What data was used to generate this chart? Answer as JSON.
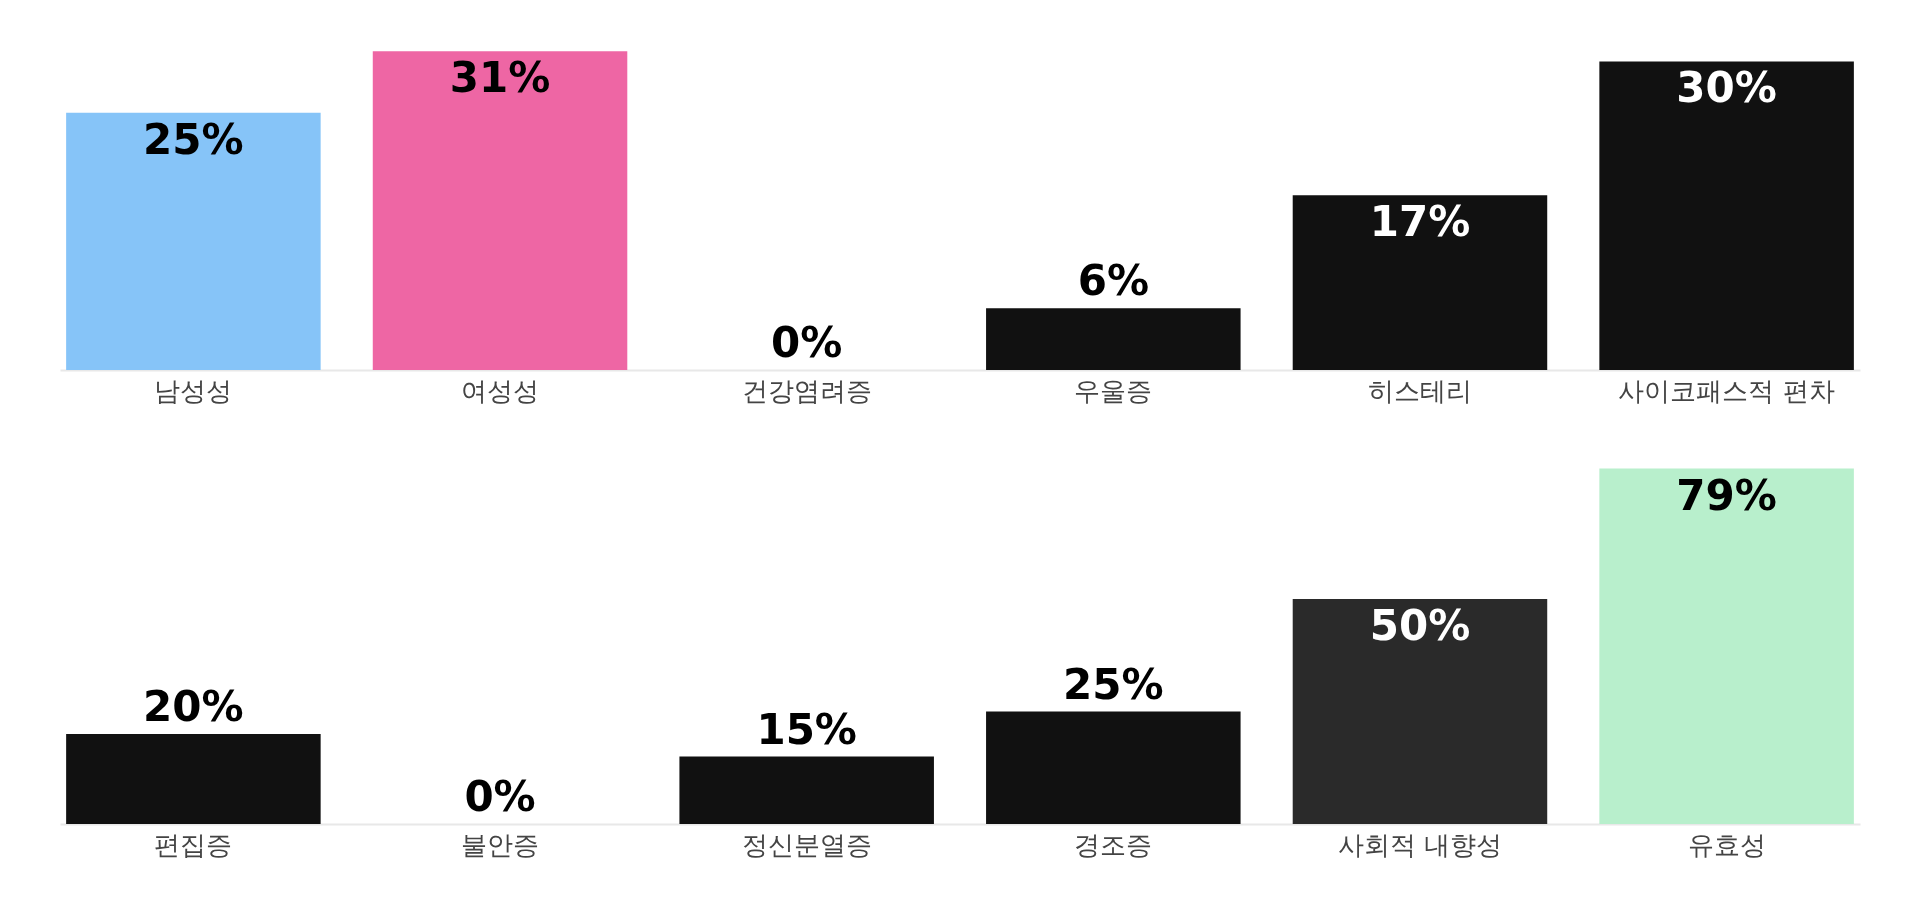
{
  "chart_data": [
    {
      "type": "bar",
      "categories": [
        "남성성",
        "여성성",
        "건강염려증",
        "우울증",
        "히스테리",
        "사이코패스적 편차"
      ],
      "values": [
        25,
        31,
        0,
        6,
        17,
        30
      ],
      "value_labels": [
        "25%",
        "31%",
        "0%",
        "6%",
        "17%",
        "30%"
      ],
      "colors": [
        "#86c4f8",
        "#ee66a4",
        "#111111",
        "#111111",
        "#111111",
        "#111111"
      ],
      "tick_labels": "x"
    },
    {
      "type": "bar",
      "categories": [
        "편집증",
        "불안증",
        "정신분열증",
        "경조증",
        "사회적 내향성",
        "유효성"
      ],
      "values": [
        20,
        0,
        15,
        25,
        50,
        79
      ],
      "value_labels": [
        "20%",
        "0%",
        "15%",
        "25%",
        "50%",
        "79%"
      ],
      "colors": [
        "#111111",
        "#111111",
        "#111111",
        "#111111",
        "#2a2a2a",
        "#b8efcc"
      ],
      "tick_labels": "x"
    }
  ]
}
